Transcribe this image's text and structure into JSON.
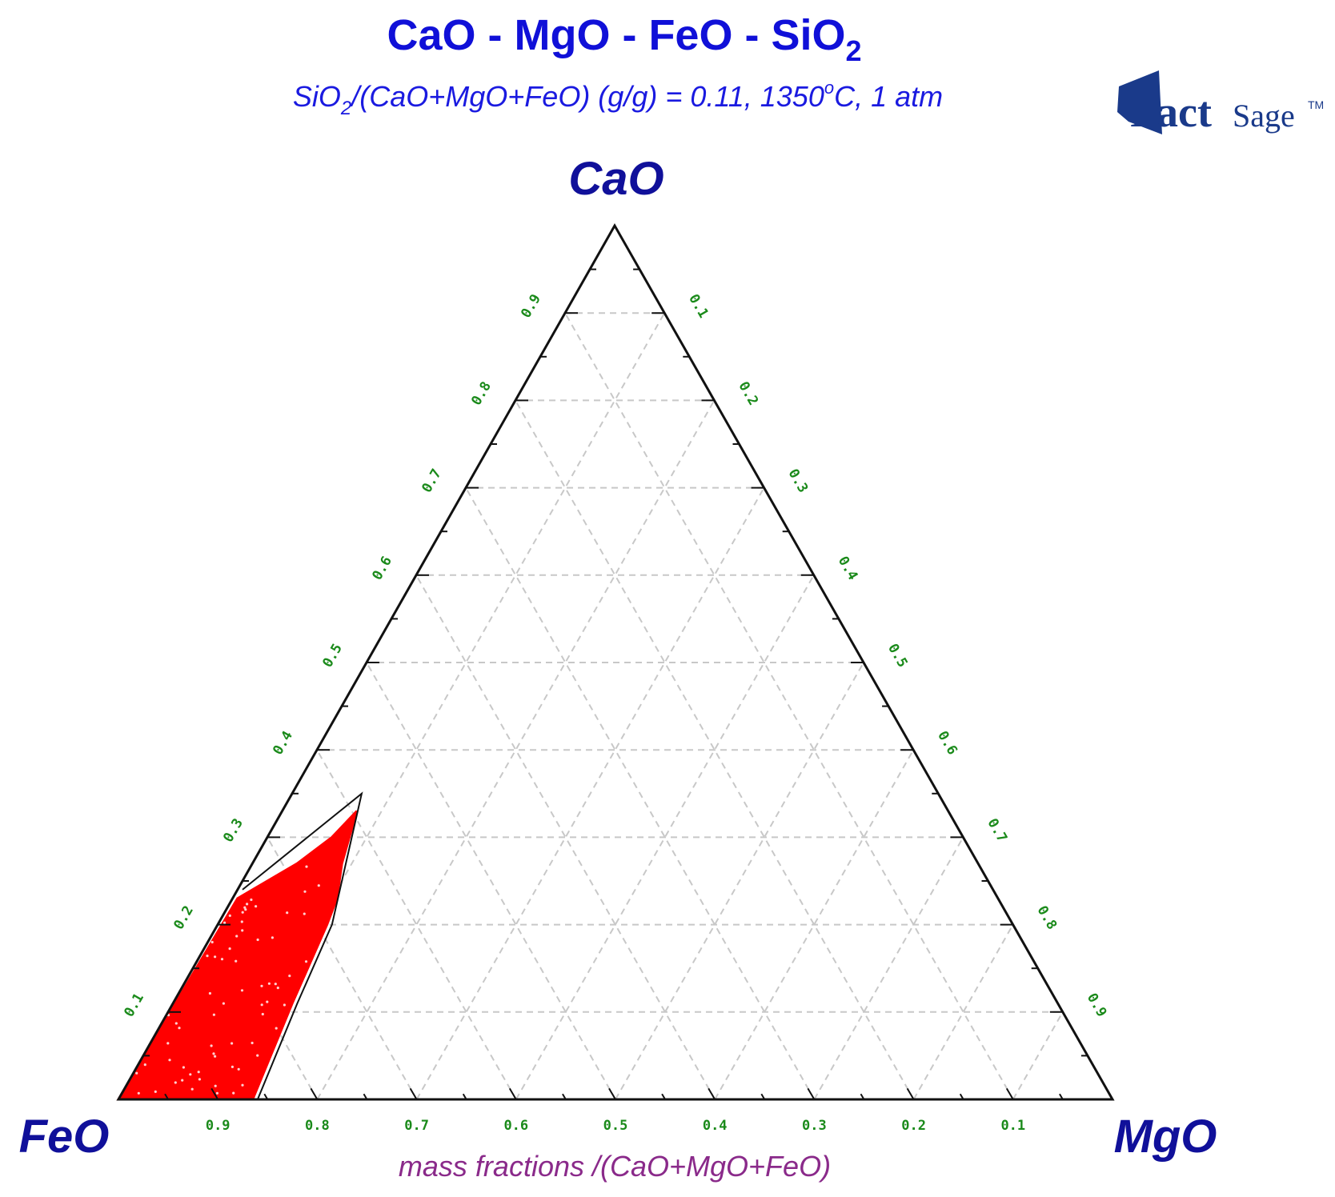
{
  "header": {
    "title_parts": [
      "CaO - MgO - FeO - SiO",
      "2"
    ],
    "subtitle_parts": [
      "SiO",
      "2",
      "/(CaO+MgO+FeO) (g/g)  = 0.11,  1350",
      "o",
      "C, 1 atm"
    ],
    "logo": {
      "bold": "Fact",
      "light": "Sage",
      "mark": "TM"
    }
  },
  "chart_data": {
    "type": "ternary",
    "title": "CaO - MgO - FeO - SiO2",
    "subtitle": "SiO2/(CaO+MgO+FeO) (g/g)  = 0.11,  1350°C, 1 atm",
    "vertices": {
      "top": "CaO",
      "left": "FeO",
      "right": "MgO"
    },
    "axis_caption": "mass fractions /(CaO+MgO+FeO)",
    "grid": true,
    "grid_step": 0.1,
    "tick_labels": {
      "left_side_CaO": [
        "0.1",
        "0.2",
        "0.3",
        "0.4",
        "0.5",
        "0.6",
        "0.7",
        "0.8",
        "0.9"
      ],
      "right_side_MgO": [
        "0.1",
        "0.2",
        "0.3",
        "0.4",
        "0.5",
        "0.6",
        "0.7",
        "0.8",
        "0.9"
      ],
      "bottom_FeO": [
        "0.9",
        "0.8",
        "0.7",
        "0.6",
        "0.5",
        "0.4",
        "0.3",
        "0.2",
        "0.1"
      ]
    },
    "liquid_region": {
      "color": "#ff0000",
      "description_compositions": [
        {
          "CaO": 0.0,
          "MgO": 0.0,
          "FeO": 1.0
        },
        {
          "CaO": 0.0,
          "MgO": 0.135,
          "FeO": 0.865
        },
        {
          "CaO": 0.11,
          "MgO": 0.12,
          "FeO": 0.77
        },
        {
          "CaO": 0.2,
          "MgO": 0.11,
          "FeO": 0.69
        },
        {
          "CaO": 0.23,
          "MgO": 0.105,
          "FeO": 0.665
        },
        {
          "CaO": 0.27,
          "MgO": 0.09,
          "FeO": 0.64
        },
        {
          "CaO": 0.33,
          "MgO": 0.075,
          "FeO": 0.595
        },
        {
          "CaO": 0.3,
          "MgO": 0.065,
          "FeO": 0.635
        },
        {
          "CaO": 0.27,
          "MgO": 0.045,
          "FeO": 0.685
        },
        {
          "CaO": 0.23,
          "MgO": 0.005,
          "FeO": 0.765
        },
        {
          "CaO": 0.0,
          "MgO": 0.0,
          "FeO": 1.0
        }
      ],
      "boundary_line": [
        {
          "CaO": 0.0,
          "MgO": 0.14,
          "FeO": 0.86
        },
        {
          "CaO": 0.11,
          "MgO": 0.125,
          "FeO": 0.765
        },
        {
          "CaO": 0.2,
          "MgO": 0.115,
          "FeO": 0.685
        },
        {
          "CaO": 0.35,
          "MgO": 0.07,
          "FeO": 0.58
        },
        {
          "CaO": 0.24,
          "MgO": 0.005,
          "FeO": 0.755
        }
      ]
    }
  },
  "colors": {
    "title": "#1010d8",
    "vertex": "#10109a",
    "tick_label": "#1a8a1a",
    "caption": "#8a2a8a",
    "grid": "#c8c8c8",
    "frame": "#111111",
    "region": "#ff0000"
  }
}
